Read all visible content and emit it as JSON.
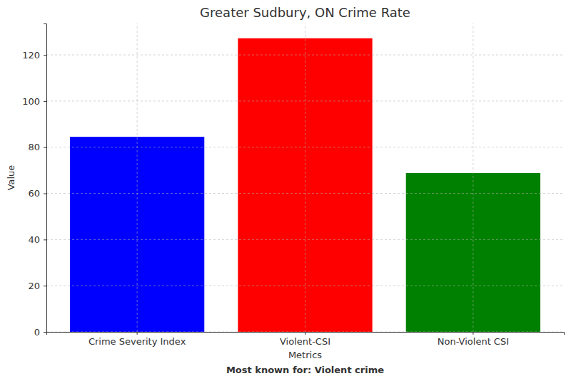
{
  "chart_data": {
    "type": "bar",
    "title": "Greater Sudbury, ON Crime Rate",
    "x_label": "Metrics",
    "y_label": "Value",
    "annotations": [
      "Most known for: Violent crime"
    ],
    "categories": [
      "Crime Severity Index",
      "Violent-CSI",
      "Non-Violent CSI"
    ],
    "values": [
      84.5,
      127.2,
      68.8
    ],
    "colors": [
      "#0000ff",
      "#ff0000",
      "#008000"
    ],
    "ylim": [
      0,
      133.6
    ],
    "yticks": [
      0,
      20,
      40,
      60,
      80,
      100,
      120
    ],
    "grid": true
  }
}
